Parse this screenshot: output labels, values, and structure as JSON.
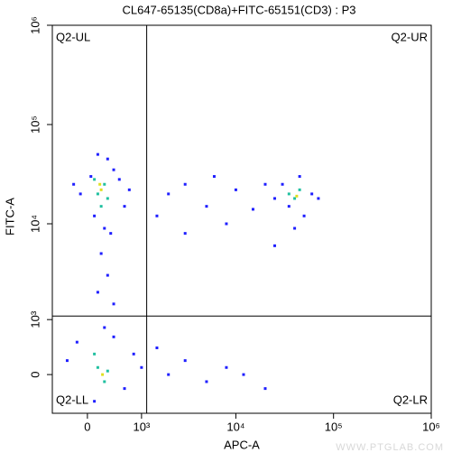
{
  "chart_data": {
    "type": "scatter",
    "title": "CL647-65135(CD8a)+FITC-65151(CD3) : P3",
    "x_label": "APC-A",
    "y_label": "FITC-A",
    "scale": "biexponential",
    "xlim": [
      -560,
      1000000
    ],
    "ylim": [
      -620,
      1000000
    ],
    "xticks": [
      0,
      {
        "value": 1000,
        "label": "10³"
      },
      {
        "value": 10000,
        "label": "10⁴"
      },
      {
        "value": 100000,
        "label": "10⁵"
      },
      {
        "value": 1000000,
        "label": "10⁶"
      }
    ],
    "yticks": [
      0,
      {
        "value": 1000,
        "label": "10³"
      },
      {
        "value": 10000,
        "label": "10⁴"
      },
      {
        "value": 100000,
        "label": "10⁵"
      },
      {
        "value": 1000000,
        "label": "10⁶"
      }
    ],
    "gate": {
      "x": 1150,
      "y": 1100
    },
    "quadrants": {
      "ul": "Q2-UL",
      "ur": "Q2-UR",
      "ll": "Q2-LL",
      "lr": "Q2-LR"
    },
    "watermark": "WWW.PTGLAB.COM",
    "series": [
      {
        "color": "#1f1fff",
        "x": [
          50,
          400,
          -100,
          600,
          300,
          100,
          500,
          -200,
          250,
          700,
          150,
          350,
          200,
          300,
          150,
          400,
          250,
          -300,
          600,
          100,
          800,
          -150,
          400,
          1000,
          2000,
          3000,
          5000,
          8000,
          12000,
          20000,
          1500,
          2000,
          3000,
          5000,
          8000,
          10000,
          15000,
          20000,
          3000,
          6000,
          1500,
          25000,
          30000,
          50000,
          60000,
          35000,
          45000,
          70000,
          25000,
          40000
        ],
        "y": [
          30000,
          35000,
          20000,
          15000,
          45000,
          12000,
          28000,
          25000,
          9000,
          22000,
          50000,
          8000,
          5000,
          3000,
          2000,
          1500,
          800,
          200,
          -200,
          -400,
          300,
          500,
          600,
          100,
          0,
          200,
          -100,
          100,
          0,
          -200,
          400,
          20000,
          25000,
          15000,
          10000,
          22000,
          14000,
          25000,
          8000,
          30000,
          12000,
          6000,
          25000,
          12000,
          20000,
          15000,
          30000,
          18000,
          18000,
          9000
        ]
      },
      {
        "color": "#20c0a0",
        "x": [
          150,
          250,
          100,
          300,
          200,
          40000,
          45000,
          35000,
          150,
          250,
          100,
          300
        ],
        "y": [
          20000,
          25000,
          28000,
          18000,
          15000,
          18000,
          22000,
          20000,
          100,
          -100,
          300,
          50
        ]
      },
      {
        "color": "#e0e020",
        "x": [
          200,
          180,
          220,
          42000
        ],
        "y": [
          22000,
          25000,
          0,
          19000
        ]
      }
    ]
  }
}
